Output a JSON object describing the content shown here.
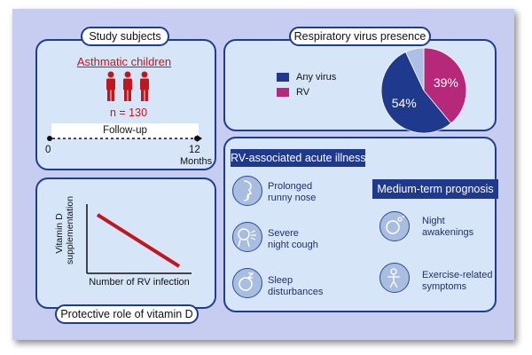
{
  "study": {
    "title": "Study subjects",
    "group_label": "Asthmatic children",
    "n_label": "n = 130",
    "followup_label": "Follow-up",
    "timeline_start": "0",
    "timeline_end": "12",
    "timeline_unit": "Months"
  },
  "virus": {
    "title": "Respiratory virus presence",
    "legend": [
      {
        "label": "Any virus",
        "color": "#1f3a8c"
      },
      {
        "label": "RV",
        "color": "#b5287a"
      }
    ],
    "pie_labels": {
      "any_virus": "54%",
      "rv": "39%"
    }
  },
  "illness": {
    "title": "RV-associated acute illness",
    "items": [
      {
        "line1": "Prolonged",
        "line2": "runny nose",
        "icon": "runny-nose-icon"
      },
      {
        "line1": "Severe",
        "line2": "night cough",
        "icon": "cough-icon"
      },
      {
        "line1": "Sleep",
        "line2": "disturbances",
        "icon": "sleep-icon"
      }
    ]
  },
  "prognosis": {
    "title": "Medium-term prognosis",
    "items": [
      {
        "line1": "Night",
        "line2": "awakenings",
        "icon": "night-awakening-icon"
      },
      {
        "line1": "Exercise-related",
        "line2": "symptoms",
        "icon": "exercise-icon"
      }
    ]
  },
  "vitd": {
    "title": "Protective role of vitamin D",
    "ylabel_line1": "Vitamin D",
    "ylabel_line2": "supplementation",
    "xlabel": "Number of RV infection"
  },
  "chart_data": [
    {
      "type": "pie",
      "title": "Respiratory virus presence",
      "slices": [
        {
          "name": "RV",
          "value": 39,
          "label": "39%",
          "color": "#b5287a"
        },
        {
          "name": "Any virus",
          "value": 54,
          "label": "54%",
          "color": "#1f3a8c"
        },
        {
          "name": "",
          "value": 7,
          "label": "",
          "color": "#aebfe6"
        }
      ]
    },
    {
      "type": "line",
      "xlabel": "Number of RV infection",
      "ylabel": "Vitamin D supplementation",
      "series": [
        {
          "x": [
            0,
            1
          ],
          "y": [
            1,
            0
          ],
          "color": "#c0171f"
        }
      ]
    }
  ],
  "colors": {
    "panel_bg": "#d6e6f8",
    "frame_bg": "#c7cdf0",
    "navy": "#1f3a8c",
    "red": "#c0171f",
    "magenta": "#b5287a"
  }
}
